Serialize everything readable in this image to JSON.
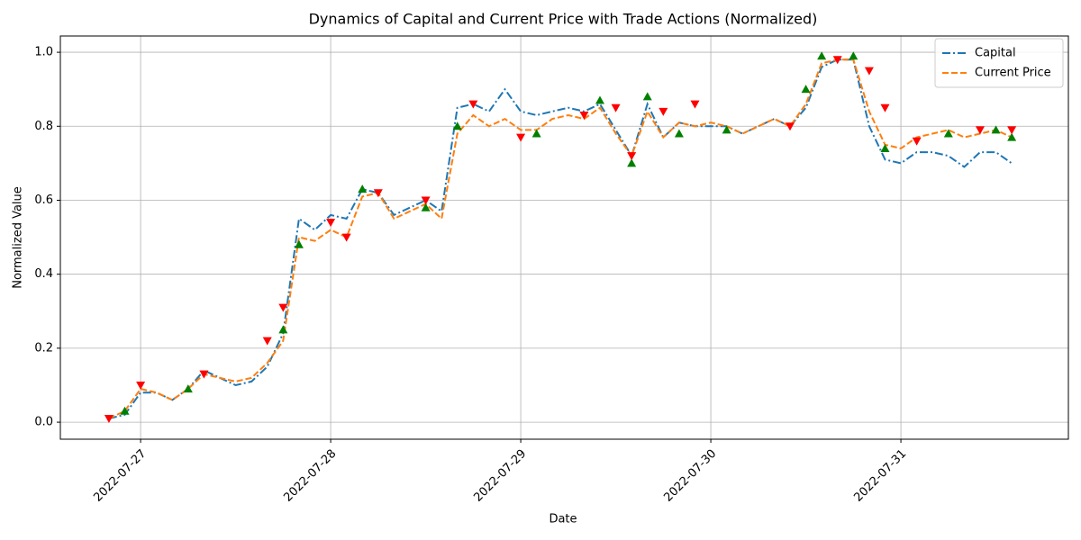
{
  "chart_data": {
    "type": "line",
    "title": "Dynamics of Capital and Current Price with Trade Actions (Normalized)",
    "xlabel": "Date",
    "ylabel": "Normalized Value",
    "x": [
      "2022-07-26T20:00",
      "2022-07-26T22:00",
      "2022-07-27T00:00",
      "2022-07-27T02:00",
      "2022-07-27T04:00",
      "2022-07-27T06:00",
      "2022-07-27T08:00",
      "2022-07-27T10:00",
      "2022-07-27T12:00",
      "2022-07-27T14:00",
      "2022-07-27T16:00",
      "2022-07-27T18:00",
      "2022-07-27T20:00",
      "2022-07-27T22:00",
      "2022-07-28T00:00",
      "2022-07-28T02:00",
      "2022-07-28T04:00",
      "2022-07-28T06:00",
      "2022-07-28T08:00",
      "2022-07-28T10:00",
      "2022-07-28T12:00",
      "2022-07-28T14:00",
      "2022-07-28T16:00",
      "2022-07-28T18:00",
      "2022-07-28T20:00",
      "2022-07-28T22:00",
      "2022-07-29T00:00",
      "2022-07-29T02:00",
      "2022-07-29T04:00",
      "2022-07-29T06:00",
      "2022-07-29T08:00",
      "2022-07-29T10:00",
      "2022-07-29T12:00",
      "2022-07-29T14:00",
      "2022-07-29T16:00",
      "2022-07-29T18:00",
      "2022-07-29T20:00",
      "2022-07-29T22:00",
      "2022-07-30T00:00",
      "2022-07-30T02:00",
      "2022-07-30T04:00",
      "2022-07-30T06:00",
      "2022-07-30T08:00",
      "2022-07-30T10:00",
      "2022-07-30T12:00",
      "2022-07-30T14:00",
      "2022-07-30T16:00",
      "2022-07-30T18:00",
      "2022-07-30T20:00",
      "2022-07-30T22:00",
      "2022-07-31T00:00",
      "2022-07-31T02:00",
      "2022-07-31T04:00",
      "2022-07-31T06:00",
      "2022-07-31T08:00",
      "2022-07-31T10:00",
      "2022-07-31T12:00",
      "2022-07-31T14:00"
    ],
    "series": [
      {
        "name": "Capital",
        "color": "#1f77b4",
        "dash": "dashdot",
        "values": [
          0.01,
          0.02,
          0.08,
          0.08,
          0.06,
          0.09,
          0.14,
          0.12,
          0.1,
          0.11,
          0.15,
          0.24,
          0.55,
          0.52,
          0.56,
          0.55,
          0.63,
          0.62,
          0.56,
          0.58,
          0.6,
          0.57,
          0.85,
          0.86,
          0.84,
          0.9,
          0.84,
          0.83,
          0.84,
          0.85,
          0.84,
          0.86,
          0.79,
          0.72,
          0.86,
          0.77,
          0.81,
          0.8,
          0.8,
          0.8,
          0.78,
          0.8,
          0.82,
          0.8,
          0.85,
          0.96,
          0.98,
          0.98,
          0.8,
          0.71,
          0.7,
          0.73,
          0.73,
          0.72,
          0.69,
          0.73,
          0.73,
          0.7
        ]
      },
      {
        "name": "Current Price",
        "color": "#ff7f0e",
        "dash": "dashed",
        "values": [
          0.01,
          0.03,
          0.09,
          0.08,
          0.06,
          0.09,
          0.13,
          0.12,
          0.11,
          0.12,
          0.16,
          0.22,
          0.5,
          0.49,
          0.52,
          0.5,
          0.61,
          0.62,
          0.55,
          0.57,
          0.59,
          0.55,
          0.78,
          0.83,
          0.8,
          0.82,
          0.79,
          0.79,
          0.82,
          0.83,
          0.82,
          0.85,
          0.78,
          0.72,
          0.84,
          0.77,
          0.81,
          0.8,
          0.81,
          0.8,
          0.78,
          0.8,
          0.82,
          0.8,
          0.86,
          0.97,
          0.98,
          0.98,
          0.84,
          0.75,
          0.74,
          0.77,
          0.78,
          0.79,
          0.77,
          0.78,
          0.79,
          0.77
        ]
      }
    ],
    "trades": [
      {
        "marker": "up",
        "color": "green",
        "x": [
          "2022-07-26T22:00",
          "2022-07-27T06:00",
          "2022-07-27T18:00",
          "2022-07-27T20:00",
          "2022-07-28T04:00",
          "2022-07-28T12:00",
          "2022-07-28T16:00",
          "2022-07-29T02:00",
          "2022-07-29T10:00",
          "2022-07-29T14:00",
          "2022-07-29T16:00",
          "2022-07-29T20:00",
          "2022-07-30T02:00",
          "2022-07-30T12:00",
          "2022-07-30T14:00",
          "2022-07-30T18:00",
          "2022-07-30T22:00",
          "2022-07-31T06:00",
          "2022-07-31T12:00",
          "2022-07-31T14:00"
        ],
        "values": [
          0.03,
          0.09,
          0.25,
          0.48,
          0.63,
          0.58,
          0.8,
          0.78,
          0.87,
          0.7,
          0.88,
          0.78,
          0.79,
          0.9,
          0.99,
          0.99,
          0.74,
          0.78,
          0.79,
          0.77
        ]
      },
      {
        "marker": "down",
        "color": "red",
        "x": [
          "2022-07-26T20:00",
          "2022-07-27T00:00",
          "2022-07-27T08:00",
          "2022-07-27T16:00",
          "2022-07-27T18:00",
          "2022-07-28T00:00",
          "2022-07-28T02:00",
          "2022-07-28T06:00",
          "2022-07-28T12:00",
          "2022-07-28T18:00",
          "2022-07-29T00:00",
          "2022-07-29T08:00",
          "2022-07-29T12:00",
          "2022-07-29T14:00",
          "2022-07-29T18:00",
          "2022-07-29T22:00",
          "2022-07-30T10:00",
          "2022-07-30T16:00",
          "2022-07-30T20:00",
          "2022-07-30T22:00",
          "2022-07-31T02:00",
          "2022-07-31T10:00",
          "2022-07-31T14:00"
        ],
        "values": [
          0.01,
          0.1,
          0.13,
          0.22,
          0.31,
          0.54,
          0.5,
          0.62,
          0.6,
          0.86,
          0.77,
          0.83,
          0.85,
          0.72,
          0.84,
          0.86,
          0.8,
          0.98,
          0.95,
          0.85,
          0.76,
          0.79,
          0.79
        ]
      }
    ],
    "xlim": [
      "2022-07-26T13:52",
      "2022-07-31T21:09"
    ],
    "xticks": [
      "2022-07-27",
      "2022-07-28",
      "2022-07-29",
      "2022-07-30",
      "2022-07-31"
    ],
    "ylim": [
      -0.046,
      1.044
    ],
    "yticks": [
      {
        "value": 0,
        "label": "0.0"
      },
      {
        "value": 0.2,
        "label": "0.2"
      },
      {
        "value": 0.4,
        "label": "0.4"
      },
      {
        "value": 0.6,
        "label": "0.6"
      },
      {
        "value": 0.8,
        "label": "0.8"
      },
      {
        "value": 1,
        "label": "1.0"
      }
    ],
    "grid": true,
    "legend": "upper right"
  }
}
